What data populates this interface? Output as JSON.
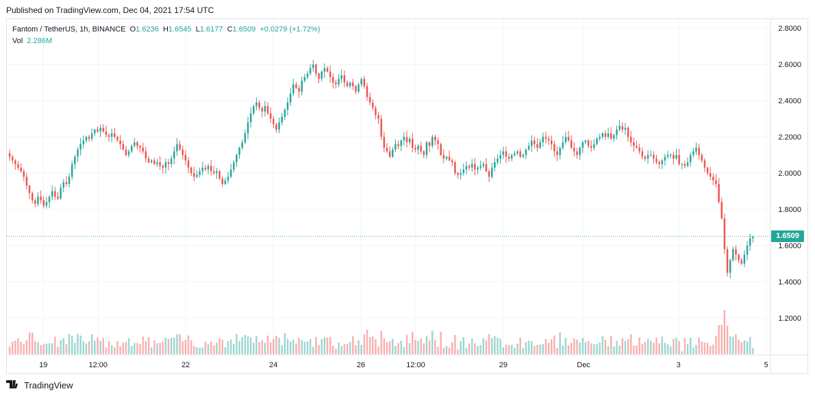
{
  "header": {
    "published_text": "Published on TradingView.com, Dec 04, 2021 17:54 UTC"
  },
  "legend": {
    "symbol": "Fantom / TetherUS, 1h, BINANCE",
    "o_label": "O",
    "o_value": "1.6236",
    "h_label": "H",
    "h_value": "1.6545",
    "l_label": "L",
    "l_value": "1.6177",
    "c_label": "C",
    "c_value": "1.6509",
    "change": "+0.0279 (+1.72%)",
    "vol_label": "Vol",
    "vol_value": "2.286M"
  },
  "last_price_label": "1.6509",
  "footer": {
    "brand": "TradingView"
  },
  "colors": {
    "up": "#26a69a",
    "down": "#ef5350",
    "grid": "#f0f3fa",
    "axis_text": "#131722"
  },
  "chart_data": {
    "type": "candlestick",
    "title": "Fantom / TetherUS, 1h, BINANCE",
    "ylim": [
      1.0,
      2.85
    ],
    "y_ticks": [
      "2.8000",
      "2.6000",
      "2.4000",
      "2.2000",
      "2.0000",
      "1.8000",
      "1.6000",
      "1.4000",
      "1.2000"
    ],
    "y_tick_values": [
      2.8,
      2.6,
      2.4,
      2.2,
      2.0,
      1.8,
      1.6,
      1.4,
      1.2
    ],
    "x_ticks": [
      "19",
      "12:00",
      "22",
      "24",
      "26",
      "12:00",
      "29",
      "Dec",
      "3",
      "5"
    ],
    "x_tick_hours": [
      20,
      50,
      98,
      146,
      194,
      224,
      272,
      316,
      368,
      416
    ],
    "last_price": 1.6509,
    "closes": [
      2.09,
      2.07,
      2.05,
      2.03,
      2.01,
      1.98,
      1.93,
      1.89,
      1.85,
      1.83,
      1.87,
      1.85,
      1.82,
      1.84,
      1.87,
      1.9,
      1.87,
      1.86,
      1.92,
      1.95,
      1.94,
      1.98,
      2.05,
      2.09,
      2.13,
      2.16,
      2.18,
      2.2,
      2.19,
      2.22,
      2.24,
      2.23,
      2.25,
      2.23,
      2.21,
      2.2,
      2.22,
      2.2,
      2.18,
      2.16,
      2.13,
      2.1,
      2.12,
      2.15,
      2.17,
      2.15,
      2.14,
      2.12,
      2.08,
      2.06,
      2.07,
      2.05,
      2.06,
      2.04,
      2.03,
      2.06,
      2.05,
      2.08,
      2.12,
      2.16,
      2.13,
      2.1,
      2.07,
      2.03,
      2.0,
      1.98,
      1.99,
      2.01,
      2.03,
      2.02,
      2.04,
      2.01,
      2.0,
      2.01,
      1.97,
      1.94,
      1.96,
      1.98,
      2.02,
      2.06,
      2.1,
      2.14,
      2.17,
      2.22,
      2.28,
      2.33,
      2.37,
      2.39,
      2.36,
      2.34,
      2.37,
      2.33,
      2.3,
      2.27,
      2.24,
      2.28,
      2.31,
      2.35,
      2.39,
      2.44,
      2.49,
      2.47,
      2.45,
      2.51,
      2.53,
      2.55,
      2.58,
      2.6,
      2.55,
      2.52,
      2.56,
      2.58,
      2.56,
      2.53,
      2.5,
      2.49,
      2.52,
      2.54,
      2.5,
      2.48,
      2.5,
      2.48,
      2.45,
      2.49,
      2.52,
      2.48,
      2.42,
      2.39,
      2.36,
      2.32,
      2.3,
      2.2,
      2.14,
      2.12,
      2.09,
      2.13,
      2.16,
      2.15,
      2.18,
      2.2,
      2.17,
      2.19,
      2.14,
      2.13,
      2.15,
      2.12,
      2.1,
      2.17,
      2.15,
      2.2,
      2.18,
      2.16,
      2.1,
      2.08,
      2.09,
      2.07,
      2.06,
      2.0,
      1.99,
      2.0,
      2.02,
      2.04,
      2.03,
      2.05,
      2.02,
      2.03,
      2.04,
      2.05,
      2.01,
      1.98,
      2.03,
      2.06,
      2.08,
      2.1,
      2.12,
      2.09,
      2.08,
      2.1,
      2.11,
      2.12,
      2.09,
      2.1,
      2.13,
      2.15,
      2.18,
      2.16,
      2.14,
      2.17,
      2.2,
      2.19,
      2.18,
      2.16,
      2.12,
      2.1,
      2.14,
      2.17,
      2.2,
      2.18,
      2.14,
      2.12,
      2.1,
      2.14,
      2.17,
      2.18,
      2.15,
      2.14,
      2.16,
      2.19,
      2.2,
      2.22,
      2.2,
      2.22,
      2.19,
      2.21,
      2.24,
      2.26,
      2.24,
      2.25,
      2.2,
      2.17,
      2.15,
      2.14,
      2.12,
      2.09,
      2.08,
      2.1,
      2.1,
      2.08,
      2.06,
      2.05,
      2.07,
      2.09,
      2.1,
      2.1,
      2.08,
      2.1,
      2.05,
      2.05,
      2.04,
      2.06,
      2.1,
      2.12,
      2.14,
      2.1,
      2.07,
      2.03,
      2.0,
      1.98,
      1.96,
      1.94,
      1.84,
      1.75,
      1.58,
      1.45,
      1.52,
      1.58,
      1.55,
      1.52,
      1.5,
      1.55,
      1.6,
      1.64,
      1.65
    ]
  }
}
